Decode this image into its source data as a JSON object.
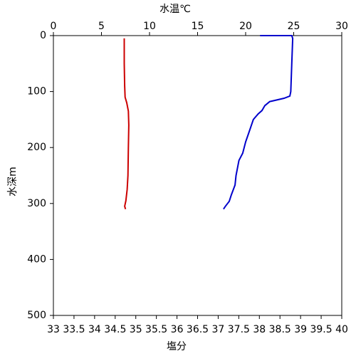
{
  "chart_data": {
    "type": "line",
    "x_label": "塩分",
    "x2_label": "水温℃",
    "y_label": "水深m",
    "xlim": [
      33,
      40
    ],
    "xticks": [
      33,
      {
        "value": 33.5,
        "label": "33.5"
      },
      34,
      {
        "value": 34.5,
        "label": "34.5"
      },
      35,
      {
        "value": 35.5,
        "label": "35.5"
      },
      36,
      {
        "value": 36.5,
        "label": "36.5"
      },
      37,
      {
        "value": 37.5,
        "label": "37.5"
      },
      38,
      {
        "value": 38.5,
        "label": "38.5"
      },
      39,
      {
        "value": 39.5,
        "label": "39.5"
      },
      40
    ],
    "x2lim": [
      0,
      30
    ],
    "x2ticks": [
      0,
      5,
      10,
      15,
      20,
      25,
      30
    ],
    "ylim": [
      0,
      500
    ],
    "yticks": [
      0,
      100,
      200,
      300,
      400,
      500
    ],
    "y_inverted": true,
    "x_label_color": "#cc0000",
    "x2_label_color": "#0000cc",
    "series": [
      {
        "color": "#0000cc",
        "axis": "x2",
        "x": [
          21.5,
          24.8,
          24.9,
          24.8,
          24.7,
          24.6,
          24.0,
          22.5,
          22.0,
          21.7,
          21.3,
          20.8,
          20.6,
          20.3,
          20.0,
          19.7,
          19.3,
          19.0,
          18.9,
          18.5,
          18.3,
          17.9,
          17.7
        ],
        "y": [
          0,
          0,
          5,
          50,
          100,
          108,
          112,
          118,
          125,
          134,
          140,
          150,
          160,
          175,
          190,
          210,
          223,
          250,
          267,
          285,
          296,
          305,
          310
        ]
      },
      {
        "color": "#cc0000",
        "axis": "x",
        "x": [
          34.72,
          34.72,
          34.73,
          34.74,
          34.78,
          34.82,
          34.83,
          34.82,
          34.81,
          34.79,
          34.76,
          34.73,
          34.75
        ],
        "y": [
          5,
          50,
          90,
          110,
          120,
          135,
          160,
          200,
          250,
          275,
          295,
          305,
          310
        ]
      }
    ]
  }
}
